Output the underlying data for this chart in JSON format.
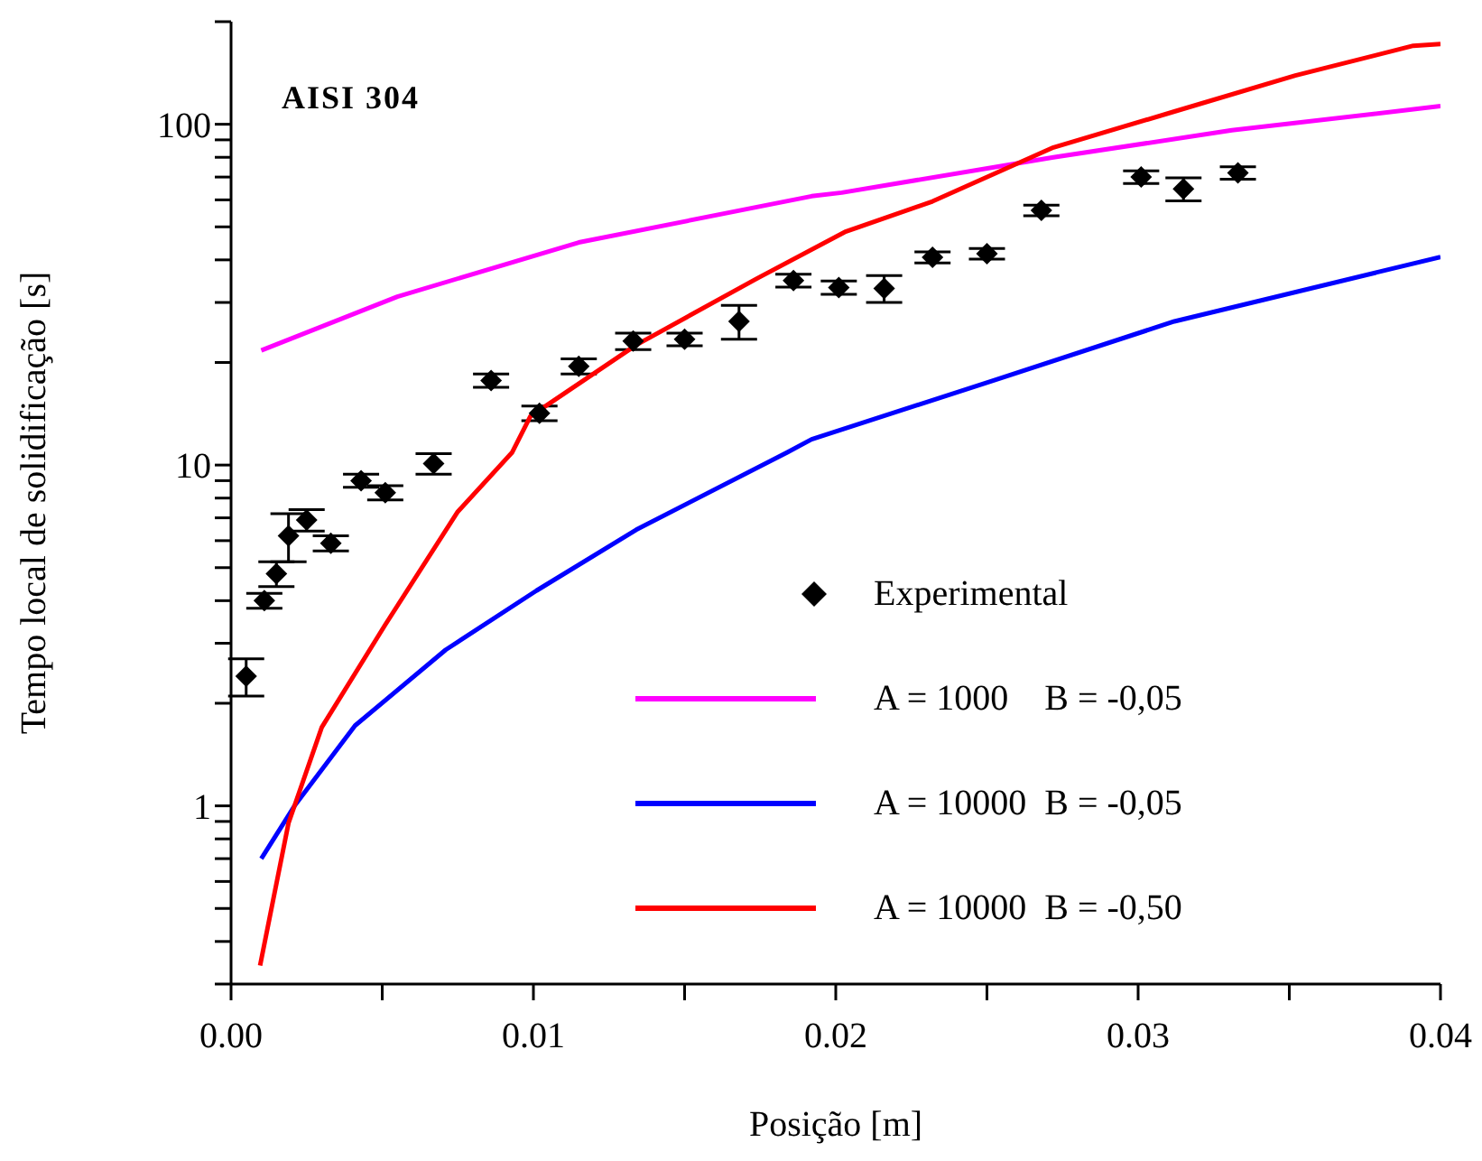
{
  "chart_data": {
    "type": "line",
    "xlabel": "Posição [m]",
    "ylabel": "Tempo local de solidificação [s]",
    "annotations": [
      "AISI 304"
    ],
    "xlim": [
      0,
      0.04
    ],
    "xticks": [
      {
        "value": 0,
        "label": "0.00"
      },
      {
        "value": 0.005,
        "label": null
      },
      {
        "value": 0.01,
        "label": "0.01"
      },
      {
        "value": 0.015,
        "label": null
      },
      {
        "value": 0.02,
        "label": "0.02"
      },
      {
        "value": 0.025,
        "label": null
      },
      {
        "value": 0.03,
        "label": "0.03"
      },
      {
        "value": 0.035,
        "label": null
      },
      {
        "value": 0.04,
        "label": "0.04"
      }
    ],
    "log": "y",
    "ylim": [
      0.3,
      200
    ],
    "yticks": [
      {
        "value": 0.3,
        "label": null
      },
      {
        "value": 0.4,
        "label": null
      },
      {
        "value": 0.5,
        "label": null
      },
      {
        "value": 0.6,
        "label": null
      },
      {
        "value": 0.7,
        "label": null
      },
      {
        "value": 0.8,
        "label": null
      },
      {
        "value": 0.9,
        "label": null
      },
      1,
      {
        "value": 2,
        "label": null
      },
      {
        "value": 3,
        "label": null
      },
      {
        "value": 4,
        "label": null
      },
      {
        "value": 5,
        "label": null
      },
      {
        "value": 6,
        "label": null
      },
      {
        "value": 7,
        "label": null
      },
      {
        "value": 8,
        "label": null
      },
      {
        "value": 9,
        "label": null
      },
      10,
      {
        "value": 20,
        "label": null
      },
      {
        "value": 30,
        "label": null
      },
      {
        "value": 40,
        "label": null
      },
      {
        "value": 50,
        "label": null
      },
      {
        "value": 60,
        "label": null
      },
      {
        "value": 70,
        "label": null
      },
      {
        "value": 80,
        "label": null
      },
      {
        "value": 90,
        "label": null
      },
      100,
      {
        "value": 200,
        "label": null
      }
    ],
    "grid": false,
    "legend": "bottom right",
    "series": [
      {
        "name": "Experimental",
        "type": "scatter",
        "marker": "diamond",
        "color": "#000000",
        "x": [
          0.0005,
          0.0011,
          0.0015,
          0.0019,
          0.0025,
          0.0033,
          0.0043,
          0.0051,
          0.0067,
          0.0086,
          0.0102,
          0.0115,
          0.0133,
          0.015,
          0.0168,
          0.0186,
          0.0201,
          0.0216,
          0.0232,
          0.025,
          0.0268,
          0.0301,
          0.0315,
          0.0333
        ],
        "values": [
          2.4,
          4.0,
          4.8,
          6.2,
          6.9,
          5.9,
          9.0,
          8.3,
          10.1,
          17.7,
          14.2,
          19.5,
          23.1,
          23.4,
          26.4,
          34.8,
          33.2,
          33,
          40.7,
          41.7,
          55.9,
          70,
          64.6,
          72
        ],
        "errors": [
          0.3,
          0.2,
          0.4,
          1.0,
          0.5,
          0.3,
          0.4,
          0.4,
          0.7,
          0.8,
          0.7,
          1.0,
          1.3,
          1.0,
          3,
          1.5,
          1.5,
          3,
          1.5,
          1.5,
          2,
          3,
          5,
          3
        ]
      },
      {
        "name": "A = 1000    B = -0,05",
        "marker": "none",
        "line_style": "solid",
        "color": "#ff00ff",
        "x": [
          0.001,
          0.0055,
          0.0115,
          0.0192,
          0.0202,
          0.0272,
          0.0331,
          0.04
        ],
        "values": [
          21.7,
          31.2,
          45,
          61.5,
          63,
          80,
          96,
          113
        ]
      },
      {
        "name": "A = 10000  B = -0,05",
        "marker": "none",
        "line_style": "solid",
        "color": "#0000ff",
        "x": [
          0.001,
          0.0021,
          0.0041,
          0.0071,
          0.0101,
          0.0134,
          0.0184,
          0.0192,
          0.0252,
          0.0312,
          0.04
        ],
        "values": [
          0.7,
          1.0,
          1.72,
          2.87,
          4.28,
          6.46,
          10.9,
          11.9,
          17.7,
          26.4,
          40.8
        ]
      },
      {
        "name": "A = 10000  B = -0,50",
        "marker": "none",
        "line_style": "solid",
        "color": "#ff0000",
        "x": [
          0.00096,
          0.0019,
          0.003,
          0.0051,
          0.0075,
          0.0093,
          0.0099,
          0.0134,
          0.0174,
          0.0203,
          0.0232,
          0.0272,
          0.0312,
          0.0352,
          0.0391,
          0.04
        ],
        "values": [
          0.34,
          0.89,
          1.7,
          3.4,
          7.3,
          10.9,
          13.9,
          22.5,
          35.3,
          48.3,
          59.4,
          85.5,
          109,
          139,
          170,
          172
        ]
      }
    ]
  }
}
